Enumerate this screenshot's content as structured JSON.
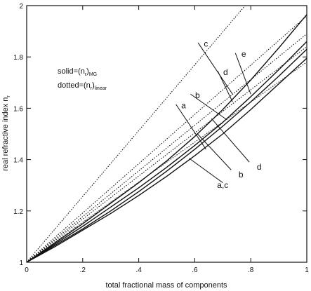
{
  "chart_data": {
    "type": "line",
    "xlabel": "total fractional mass of components",
    "ylabel": "real refractive index n",
    "ylabel_subscript": "r",
    "xlim": [
      0,
      1
    ],
    "ylim": [
      1,
      2
    ],
    "x_ticks": [
      {
        "value": 0,
        "label": "0"
      },
      {
        "value": 0.2,
        "label": ".2"
      },
      {
        "value": 0.4,
        "label": ".4"
      },
      {
        "value": 0.6,
        "label": ".6"
      },
      {
        "value": 0.8,
        "label": ".8"
      },
      {
        "value": 1,
        "label": "1"
      }
    ],
    "y_ticks": [
      {
        "value": 1,
        "label": "1"
      },
      {
        "value": 1.2,
        "label": "1.2"
      },
      {
        "value": 1.4,
        "label": "1.4"
      },
      {
        "value": 1.6,
        "label": "1.6"
      },
      {
        "value": 1.8,
        "label": "1.8"
      },
      {
        "value": 2,
        "label": "2"
      }
    ],
    "legend": {
      "solid_prefix": "solid=(n",
      "solid_sub1": "r",
      "solid_mid": ")",
      "solid_sub2": "MG",
      "dotted_prefix": "dotted=(n",
      "dotted_sub1": "r",
      "dotted_mid": ")",
      "dotted_sub2": "linear"
    },
    "series": [
      {
        "id": "solid-a-c",
        "style": "solid",
        "x": [
          0,
          0.1,
          0.2,
          0.3,
          0.4,
          0.5,
          0.6,
          0.7,
          0.8,
          0.9,
          1.0
        ],
        "y": [
          1,
          1.06,
          1.125,
          1.19,
          1.26,
          1.335,
          1.415,
          1.5,
          1.595,
          1.695,
          1.795
        ]
      },
      {
        "id": "solid-b",
        "style": "solid",
        "x": [
          0,
          0.1,
          0.2,
          0.3,
          0.4,
          0.5,
          0.6,
          0.7,
          0.8,
          0.9,
          1.0
        ],
        "y": [
          1,
          1.065,
          1.13,
          1.2,
          1.275,
          1.355,
          1.44,
          1.53,
          1.625,
          1.725,
          1.83
        ]
      },
      {
        "id": "solid-d",
        "style": "solid",
        "x": [
          0,
          0.1,
          0.2,
          0.3,
          0.4,
          0.5,
          0.6,
          0.7,
          0.8,
          0.9,
          1.0
        ],
        "y": [
          1,
          1.07,
          1.14,
          1.215,
          1.29,
          1.37,
          1.455,
          1.545,
          1.645,
          1.75,
          1.86
        ]
      },
      {
        "id": "solid-e",
        "style": "solid",
        "x": [
          0,
          0.1,
          0.2,
          0.3,
          0.4,
          0.5,
          0.6,
          0.7,
          0.8,
          0.9,
          1.0
        ],
        "y": [
          1,
          1.075,
          1.15,
          1.23,
          1.31,
          1.395,
          1.49,
          1.595,
          1.71,
          1.835,
          1.965
        ]
      },
      {
        "id": "dotted-a",
        "style": "dotted",
        "x": [
          0,
          1
        ],
        "y": [
          1,
          1.78
        ]
      },
      {
        "id": "dotted-b",
        "style": "dotted",
        "x": [
          0,
          1
        ],
        "y": [
          1,
          1.84
        ]
      },
      {
        "id": "dotted-d",
        "style": "dotted",
        "x": [
          0,
          1
        ],
        "y": [
          1,
          1.89
        ]
      },
      {
        "id": "dotted-e",
        "style": "dotted",
        "x": [
          0,
          1
        ],
        "y": [
          1,
          1.96
        ]
      },
      {
        "id": "dotted-c",
        "style": "dotted",
        "x": [
          0,
          0.78
        ],
        "y": [
          1,
          2.0
        ]
      }
    ],
    "annotations": [
      {
        "text": "e",
        "x": 0.775,
        "y": 1.8
      },
      {
        "text": "d",
        "x": 0.71,
        "y": 1.73
      },
      {
        "text": "c",
        "x": 0.64,
        "y": 1.84
      },
      {
        "text": "b",
        "x": 0.61,
        "y": 1.64
      },
      {
        "text": "a",
        "x": 0.56,
        "y": 1.6
      },
      {
        "text": "d",
        "x": 0.83,
        "y": 1.36
      },
      {
        "text": "b",
        "x": 0.765,
        "y": 1.33
      },
      {
        "text": "a,c",
        "x": 0.7,
        "y": 1.29
      }
    ],
    "leader_lines": [
      {
        "x1": 0.745,
        "y1": 1.815,
        "x2": 0.8,
        "y2": 1.655
      },
      {
        "x1": 0.682,
        "y1": 1.745,
        "x2": 0.735,
        "y2": 1.625
      },
      {
        "x1": 0.612,
        "y1": 1.855,
        "x2": 0.735,
        "y2": 1.655
      },
      {
        "x1": 0.585,
        "y1": 1.655,
        "x2": 0.715,
        "y2": 1.555
      },
      {
        "x1": 0.533,
        "y1": 1.615,
        "x2": 0.64,
        "y2": 1.44
      },
      {
        "x1": 0.795,
        "y1": 1.39,
        "x2": 0.66,
        "y2": 1.56
      },
      {
        "x1": 0.73,
        "y1": 1.36,
        "x2": 0.61,
        "y2": 1.5
      },
      {
        "x1": 0.7,
        "y1": 1.31,
        "x2": 0.58,
        "y2": 1.405
      }
    ]
  }
}
